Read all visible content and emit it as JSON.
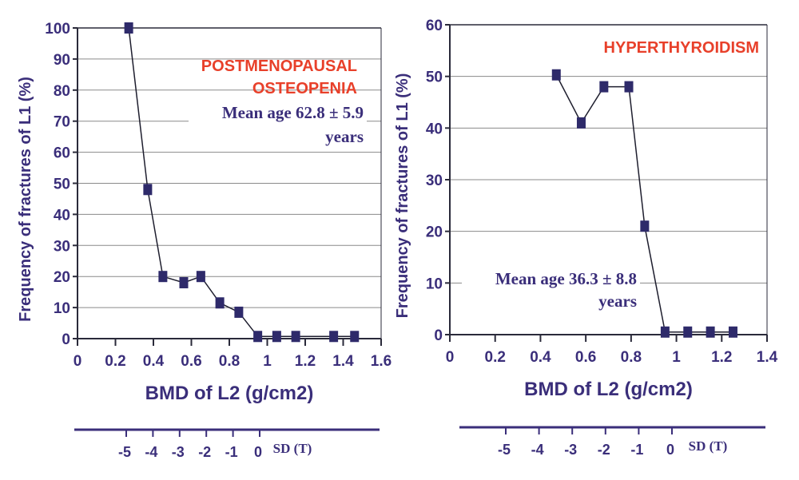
{
  "colors": {
    "text": "#3a2e7a",
    "marker": "#2e2a6a",
    "line": "#1e1e2e",
    "grid": "#8a8a8a",
    "axis": "#2a2a3a",
    "annotation_red": "#e8402a",
    "sd_axis": "#3a2e7a"
  },
  "chart_data": [
    {
      "type": "line",
      "id": "left",
      "title": "POSTMENOPAUSAL OSTEOPENIA",
      "title_lines": [
        "POSTMENOPAUSAL",
        "OSTEOPENIA"
      ],
      "annotation_lines": [
        "Mean age 62.8 ± 5.9",
        "years"
      ],
      "xlabel": "BMD of L2 (g/cm2)",
      "ylabel": "Frequency of fractures of L1 (%)",
      "xlim": [
        0,
        1.6
      ],
      "ylim": [
        0,
        100
      ],
      "x_ticks": [
        0,
        0.2,
        0.4,
        0.6,
        0.8,
        1,
        1.2,
        1.4,
        1.6
      ],
      "x_tick_labels": [
        "0",
        "0.2",
        "0.4",
        "0.6",
        "0.8",
        "1",
        "1.2",
        "1.4",
        "1.6"
      ],
      "y_ticks": [
        0,
        10,
        20,
        30,
        40,
        50,
        60,
        70,
        80,
        90,
        100
      ],
      "y_tick_labels": [
        "0",
        "10",
        "20",
        "30",
        "40",
        "50",
        "60",
        "70",
        "80",
        "90",
        "100"
      ],
      "grid": "horizontal",
      "legend": "none",
      "series": [
        {
          "name": "Postmenopausal osteopenia",
          "marker": "square",
          "x": [
            0.27,
            0.37,
            0.45,
            0.56,
            0.65,
            0.75,
            0.85,
            0.95,
            1.05,
            1.15,
            1.35,
            1.46
          ],
          "y": [
            100,
            48,
            20,
            18,
            20,
            11.5,
            8.5,
            0.7,
            0.7,
            0.7,
            0.7,
            0.7
          ]
        }
      ],
      "sd_axis": {
        "title": "SD (T)",
        "ticks": [
          -5,
          -4,
          -3,
          -2,
          -1,
          0
        ],
        "tick_labels": [
          "-5",
          "-4",
          "-3",
          "-2",
          "-1",
          "0"
        ]
      }
    },
    {
      "type": "line",
      "id": "right",
      "title": "HYPERTHYROIDISM",
      "title_lines": [
        "HYPERTHYROIDISM"
      ],
      "annotation_lines": [
        "Mean age 36.3 ± 8.8",
        "years"
      ],
      "xlabel": "BMD of L2 (g/cm2)",
      "ylabel": "Frequency of fractures of L1 (%)",
      "xlim": [
        0,
        1.4
      ],
      "ylim": [
        0,
        60
      ],
      "x_ticks": [
        0,
        0.2,
        0.4,
        0.6,
        0.8,
        1,
        1.2,
        1.4
      ],
      "x_tick_labels": [
        "0",
        "0.2",
        "0.4",
        "0.6",
        "0.8",
        "1",
        "1.2",
        "1.4"
      ],
      "y_ticks": [
        0,
        10,
        20,
        30,
        40,
        50,
        60
      ],
      "y_tick_labels": [
        "0",
        "10",
        "20",
        "30",
        "40",
        "50",
        "60"
      ],
      "grid": "horizontal",
      "legend": "none",
      "series": [
        {
          "name": "Hyperthyroidism",
          "marker": "square",
          "x": [
            0.47,
            0.58,
            0.68,
            0.79,
            0.86,
            0.95,
            1.05,
            1.15,
            1.25
          ],
          "y": [
            50.3,
            41,
            48,
            48,
            21,
            0.5,
            0.5,
            0.5,
            0.5
          ]
        }
      ],
      "sd_axis": {
        "title": "SD (T)",
        "ticks": [
          -5,
          -4,
          -3,
          -2,
          -1,
          0
        ],
        "tick_labels": [
          "-5",
          "-4",
          "-3",
          "-2",
          "-1",
          "0"
        ]
      }
    }
  ]
}
